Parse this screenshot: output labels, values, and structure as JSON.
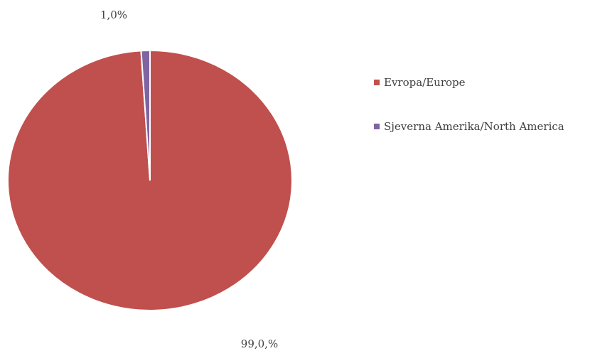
{
  "chart_data": {
    "type": "pie",
    "categories": [
      "Evropa/Europe",
      "Sjeverna Amerika/North America"
    ],
    "values": [
      99.0,
      1.0
    ],
    "data_labels": [
      "99,0,%",
      "1,0%"
    ],
    "colors": [
      "#c0504d",
      "#8064a2"
    ],
    "legend_position": "right",
    "start_angle": "12 o'clock, clockwise"
  }
}
